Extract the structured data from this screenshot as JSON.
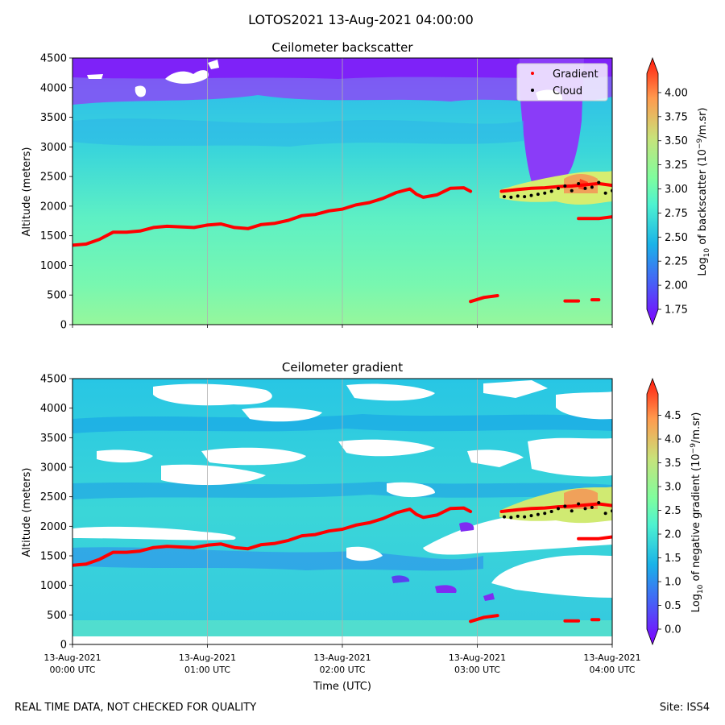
{
  "figure": {
    "title": "LOTOS2021 13-Aug-2021 04:00:00",
    "footer_left": "REAL TIME DATA, NOT CHECKED FOR QUALITY",
    "footer_right": "Site: ISS4"
  },
  "chart_data": [
    {
      "type": "heatmap",
      "title": "Ceilometer backscatter",
      "xlabel": "",
      "ylabel": "Altitude (meters)",
      "ylim": [
        0,
        4500
      ],
      "yticks": [
        0,
        500,
        1000,
        1500,
        2000,
        2500,
        3000,
        3500,
        4000,
        4500
      ],
      "xlim_hours": [
        0,
        4
      ],
      "grid": "vertical",
      "legend": {
        "position": "top-right",
        "entries": [
          {
            "label": "Gradient",
            "color": "#ff0000"
          },
          {
            "label": "Cloud",
            "color": "#000000"
          }
        ]
      },
      "colorbar": {
        "label": "Log10 of backscatter (10^-9/m.sr)",
        "label_pre": "Log",
        "label_sub": "10",
        "label_mid": " of backscatter (10",
        "label_sup": "−9",
        "label_post": "/m.sr)",
        "range": [
          1.75,
          4.2
        ],
        "ticks": [
          "1.75",
          "2.00",
          "2.25",
          "2.50",
          "2.75",
          "3.00",
          "3.25",
          "3.50",
          "3.75",
          "4.00"
        ]
      },
      "gradient_series": {
        "name": "Gradient",
        "x_hours": [
          0.0,
          0.1,
          0.2,
          0.3,
          0.4,
          0.5,
          0.6,
          0.7,
          0.8,
          0.9,
          1.0,
          1.1,
          1.2,
          1.3,
          1.4,
          1.5,
          1.6,
          1.7,
          1.8,
          1.9,
          2.0,
          2.1,
          2.2,
          2.3,
          2.4,
          2.5,
          2.55,
          2.6,
          2.7,
          2.8,
          2.9,
          2.95
        ],
        "y_m": [
          1340,
          1360,
          1440,
          1560,
          1560,
          1580,
          1640,
          1660,
          1650,
          1640,
          1680,
          1700,
          1640,
          1620,
          1690,
          1710,
          1760,
          1840,
          1860,
          1920,
          1950,
          2020,
          2060,
          2130,
          2230,
          2290,
          2200,
          2150,
          2190,
          2300,
          2310,
          2250
        ]
      },
      "gradient_segments": [
        {
          "x_hours": [
            2.95,
            3.05,
            3.15
          ],
          "y_m": [
            390,
            460,
            490
          ]
        },
        {
          "x_hours": [
            3.65,
            3.75
          ],
          "y_m": [
            400,
            400
          ]
        },
        {
          "x_hours": [
            3.85,
            3.9
          ],
          "y_m": [
            420,
            420
          ]
        },
        {
          "x_hours": [
            3.75,
            3.8,
            3.9,
            4.0
          ],
          "y_m": [
            1790,
            1790,
            1790,
            1820
          ]
        },
        {
          "x_hours": [
            3.18,
            3.3,
            3.4,
            3.5,
            3.6,
            3.7,
            3.8,
            3.9,
            4.0
          ],
          "y_m": [
            2250,
            2280,
            2300,
            2310,
            2330,
            2340,
            2360,
            2380,
            2350
          ]
        }
      ],
      "cloud_series": {
        "name": "Cloud",
        "x_hours": [
          3.2,
          3.25,
          3.3,
          3.35,
          3.4,
          3.45,
          3.5,
          3.55,
          3.6,
          3.65,
          3.7,
          3.75,
          3.8,
          3.85,
          3.9,
          3.95,
          4.0
        ],
        "y_m": [
          2160,
          2150,
          2170,
          2160,
          2180,
          2200,
          2220,
          2250,
          2300,
          2340,
          2260,
          2380,
          2300,
          2320,
          2400,
          2220,
          2260
        ]
      }
    },
    {
      "type": "heatmap",
      "title": "Ceilometer gradient",
      "xlabel": "Time (UTC)",
      "ylabel": "Altitude (meters)",
      "ylim": [
        0,
        4500
      ],
      "yticks": [
        0,
        500,
        1000,
        1500,
        2000,
        2500,
        3000,
        3500,
        4000,
        4500
      ],
      "xlim_hours": [
        0,
        4
      ],
      "grid": "vertical",
      "xticks": [
        {
          "line1": "13-Aug-2021",
          "line2": "00:00 UTC"
        },
        {
          "line1": "13-Aug-2021",
          "line2": "01:00 UTC"
        },
        {
          "line1": "13-Aug-2021",
          "line2": "02:00 UTC"
        },
        {
          "line1": "13-Aug-2021",
          "line2": "03:00 UTC"
        },
        {
          "line1": "13-Aug-2021",
          "line2": "04:00 UTC"
        }
      ],
      "colorbar": {
        "label": "Log10 of negative gradient (10^-9/m.sr)",
        "label_pre": "Log",
        "label_sub": "10",
        "label_mid": " of negative gradient (10",
        "label_sup": "−9",
        "label_post": "/m.sr)",
        "range": [
          0.0,
          4.95
        ],
        "ticks": [
          "0.0",
          "0.5",
          "1.0",
          "1.5",
          "2.0",
          "2.5",
          "3.0",
          "3.5",
          "4.0",
          "4.5"
        ]
      }
    }
  ]
}
